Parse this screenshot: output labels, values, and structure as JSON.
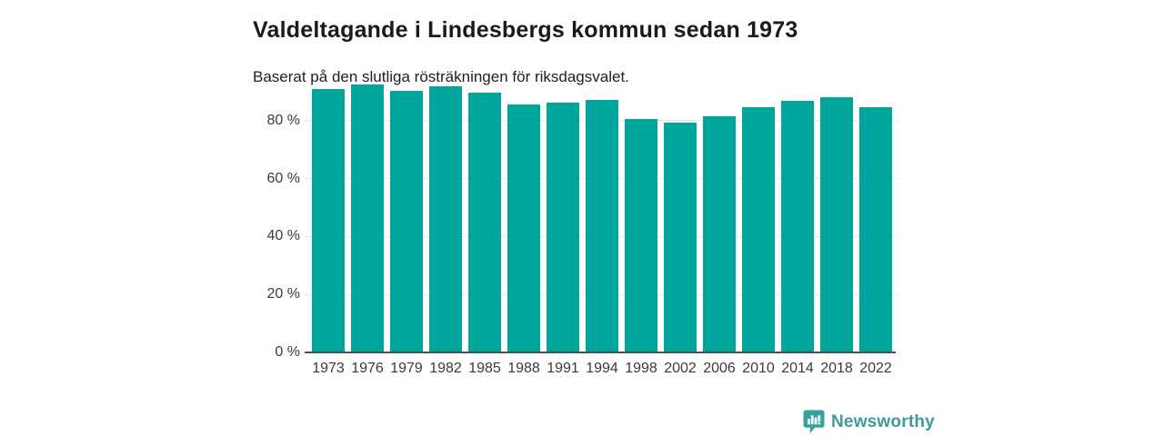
{
  "header": {
    "title": "Valdeltagande i Lindesbergs kommun sedan 1973",
    "subtitle": "Baserat på den slutliga rösträkningen för riksdagsvalet."
  },
  "chart_data": {
    "type": "bar",
    "title": "Valdeltagande i Lindesbergs kommun sedan 1973",
    "subtitle": "Baserat på den slutliga rösträkningen för riksdagsvalet.",
    "categories": [
      "1973",
      "1976",
      "1979",
      "1982",
      "1985",
      "1988",
      "1991",
      "1994",
      "1998",
      "2002",
      "2006",
      "2010",
      "2014",
      "2018",
      "2022"
    ],
    "values": [
      91.0,
      92.5,
      90.3,
      91.9,
      89.7,
      85.6,
      86.1,
      87.2,
      80.5,
      79.2,
      81.4,
      84.7,
      86.7,
      88.0,
      84.5
    ],
    "unit": "%",
    "xlabel": "",
    "ylabel": "",
    "ylim": [
      0,
      100
    ],
    "yticks": [
      0,
      20,
      40,
      60,
      80
    ],
    "ytick_labels": [
      "0 %",
      "20 %",
      "40 %",
      "60 %",
      "80 %"
    ],
    "grid": true,
    "legend": "none",
    "bar_color": "#00a69b"
  },
  "colors": {
    "bar": "#00a69b",
    "gridline": "#e6e6e6",
    "axis_line": "#4f4f4f",
    "axis_text": "#3a3a3a",
    "title_text": "#1a1a1a",
    "brand_teal": "#3e9b99",
    "logo_badge": "#35a39c"
  },
  "footer": {
    "brand": "Newsworthy"
  }
}
